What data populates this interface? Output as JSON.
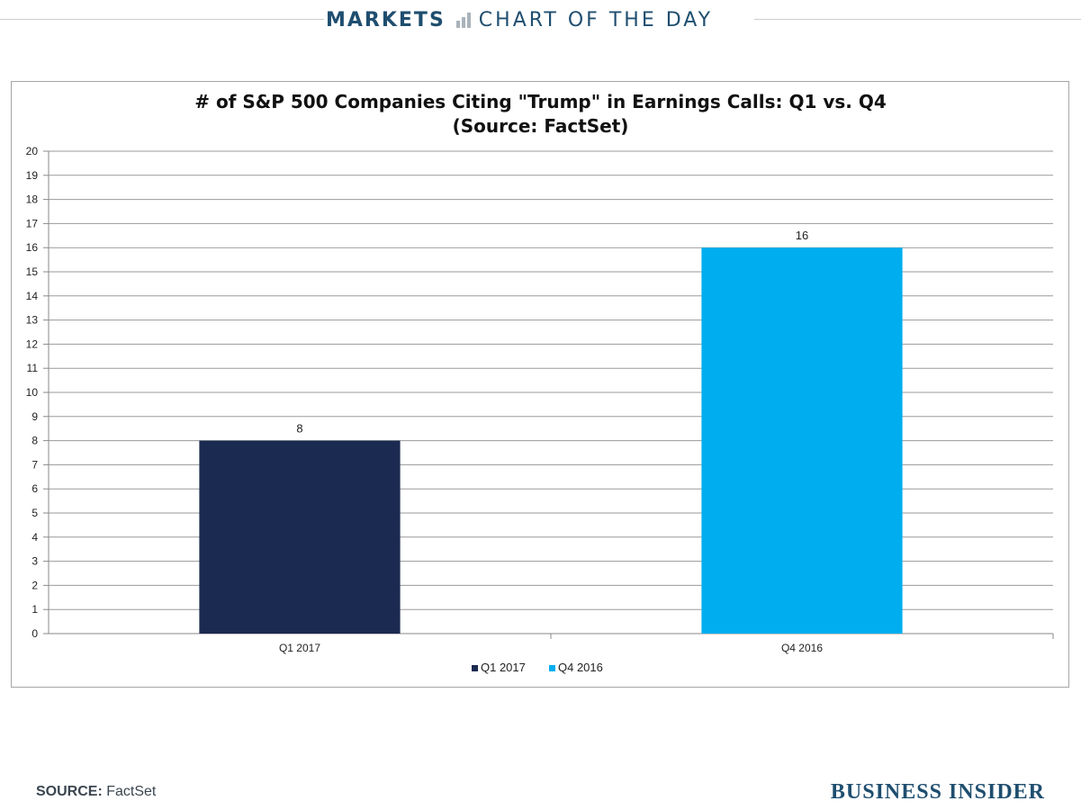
{
  "header": {
    "section": "MARKETS",
    "subtitle": "CHART OF THE DAY"
  },
  "chart_data": {
    "type": "bar",
    "title": "# of S&P 500 Companies Citing \"Trump\" in Earnings Calls: Q1 vs. Q4",
    "subtitle": "(Source: FactSet)",
    "categories": [
      "Q1 2017",
      "Q4 2016"
    ],
    "values": [
      8,
      16
    ],
    "data_labels": [
      "8",
      "16"
    ],
    "colors": [
      "#1b2a50",
      "#00aeef"
    ],
    "legend": [
      "Q1 2017",
      "Q4 2016"
    ],
    "legend_position": "bottom",
    "ylim": [
      0,
      20
    ],
    "yticks": [
      0,
      1,
      2,
      3,
      4,
      5,
      6,
      7,
      8,
      9,
      10,
      11,
      12,
      13,
      14,
      15,
      16,
      17,
      18,
      19,
      20
    ],
    "grid": true,
    "xlabel": "",
    "ylabel": ""
  },
  "footer": {
    "source_label": "SOURCE:",
    "source_text": "FactSet",
    "brand": "BUSINESS INSIDER"
  }
}
